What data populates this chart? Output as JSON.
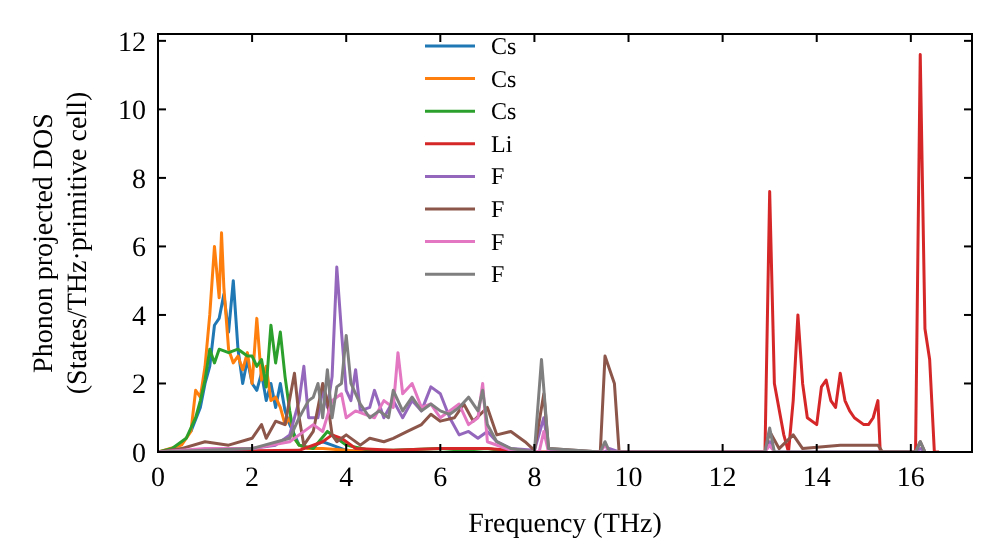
{
  "chart_data": {
    "type": "line",
    "xlabel": "Frequency (THz)",
    "ylabel": "Phonon projected DOS\n(States/THz·primitive cell)",
    "xlim": [
      0,
      17.3
    ],
    "ylim": [
      0,
      12.2
    ],
    "xticks": [
      0,
      2,
      4,
      6,
      8,
      10,
      12,
      14,
      16
    ],
    "yticks": [
      0,
      2,
      4,
      6,
      8,
      10,
      12
    ],
    "grid": false,
    "legend": "top",
    "marker": "none",
    "line_style": "solid",
    "series": [
      {
        "name": "Cs",
        "color": "#1f77b4",
        "x": [
          0.7,
          0.9,
          1.0,
          1.1,
          1.2,
          1.3,
          1.4,
          1.5,
          1.6,
          1.7,
          1.8,
          1.9,
          2.0,
          2.1,
          2.2,
          2.3,
          2.4,
          2.5,
          2.6,
          2.7,
          2.8,
          2.9,
          3.0,
          3.2,
          3.5,
          3.7,
          4.0,
          4.5
        ],
        "values": [
          0.6,
          1.3,
          2.0,
          2.5,
          3.7,
          3.9,
          4.6,
          3.5,
          5.0,
          3.0,
          2.0,
          2.7,
          2.0,
          1.8,
          2.3,
          1.5,
          2.0,
          1.3,
          2.0,
          1.2,
          0.8,
          0.5,
          0.2,
          0.1,
          0.3,
          0.2,
          0.05,
          0
        ]
      },
      {
        "name": "Cs",
        "color": "#ff7f0e",
        "x": [
          0,
          0.5,
          0.7,
          0.8,
          0.9,
          1.0,
          1.1,
          1.2,
          1.3,
          1.35,
          1.4,
          1.5,
          1.6,
          1.7,
          1.8,
          1.9,
          2.0,
          2.1,
          2.2,
          2.3,
          2.4,
          2.5,
          2.6,
          2.7,
          2.8,
          2.9,
          3.0,
          3.2,
          3.5,
          4.0,
          4.5
        ],
        "values": [
          0,
          0.2,
          0.6,
          1.8,
          1.6,
          2.5,
          4.0,
          6.0,
          4.5,
          6.4,
          4.8,
          3.0,
          2.6,
          2.8,
          2.4,
          2.9,
          2.0,
          3.9,
          2.1,
          2.5,
          1.5,
          1.6,
          1.3,
          0.8,
          1.0,
          0.4,
          0.2,
          0.1,
          0.1,
          0.05,
          0
        ]
      },
      {
        "name": "Cs",
        "color": "#2ca02c",
        "x": [
          0,
          0.3,
          0.6,
          0.8,
          0.9,
          1.0,
          1.1,
          1.2,
          1.3,
          1.5,
          1.7,
          1.9,
          2.0,
          2.1,
          2.2,
          2.3,
          2.4,
          2.5,
          2.6,
          2.7,
          2.8,
          2.9,
          3.0,
          3.3,
          3.6,
          3.8,
          4.0,
          4.5,
          5.0,
          6.0,
          6.5,
          7.0,
          7.5
        ],
        "values": [
          0,
          0.1,
          0.4,
          1.0,
          1.5,
          2.1,
          3.0,
          2.6,
          3.0,
          2.9,
          3.0,
          2.8,
          2.8,
          2.5,
          2.7,
          1.9,
          3.7,
          2.6,
          3.5,
          2.2,
          1.2,
          0.4,
          0.2,
          0.1,
          0.6,
          0.4,
          0.2,
          0.05,
          0.05,
          0.1,
          0.05,
          0.1,
          0
        ]
      },
      {
        "name": "Li",
        "color": "#d62728",
        "x": [
          0,
          3.0,
          3.5,
          3.7,
          3.9,
          4.2,
          5.0,
          6.0,
          7.0,
          7.5,
          8.0,
          12.9,
          13.0,
          13.1,
          13.3,
          13.4,
          13.5,
          13.6,
          13.7,
          13.8,
          14.0,
          14.1,
          14.2,
          14.3,
          14.4,
          14.5,
          14.6,
          14.7,
          14.8,
          15.0,
          15.1,
          15.2,
          15.3,
          15.35,
          16.1,
          16.2,
          16.3,
          16.4,
          16.5,
          16.6
        ],
        "values": [
          0,
          0.05,
          0.3,
          0.5,
          0.4,
          0.1,
          0.05,
          0.1,
          0.1,
          0.05,
          0,
          0,
          7.6,
          2.0,
          0.5,
          0,
          1.5,
          4.0,
          2.0,
          1.0,
          0.8,
          1.9,
          2.1,
          1.5,
          1.3,
          2.3,
          1.5,
          1.2,
          1.0,
          0.8,
          0.8,
          1.0,
          1.5,
          0,
          0,
          11.6,
          3.6,
          2.7,
          0,
          0
        ]
      },
      {
        "name": "F",
        "color": "#9467bd",
        "x": [
          0,
          1.0,
          2.0,
          2.5,
          2.8,
          3.0,
          3.1,
          3.2,
          3.4,
          3.5,
          3.6,
          3.7,
          3.8,
          3.9,
          4.0,
          4.1,
          4.2,
          4.3,
          4.5,
          4.6,
          4.8,
          5.0,
          5.2,
          5.4,
          5.6,
          5.8,
          6.0,
          6.2,
          6.4,
          6.6,
          6.8,
          7.0,
          7.2,
          7.5,
          8.0,
          8.2,
          8.3,
          9.5,
          9.6,
          9.8,
          12.9,
          13.0,
          13.1,
          16.1,
          16.2,
          16.3
        ],
        "values": [
          0,
          0.05,
          0.1,
          0.2,
          0.5,
          1.5,
          2.5,
          1.0,
          1.0,
          1.8,
          1.3,
          2.2,
          5.4,
          3.5,
          1.8,
          1.5,
          2.4,
          1.2,
          1.3,
          1.8,
          1.0,
          1.5,
          1.0,
          1.5,
          1.2,
          1.9,
          1.7,
          1.0,
          0.5,
          0.6,
          0.4,
          0.6,
          0.3,
          0.1,
          0.05,
          1.0,
          0.05,
          0,
          0.1,
          0,
          0,
          0.3,
          0,
          0,
          0.1,
          0
        ]
      },
      {
        "name": "F",
        "color": "#8c564b",
        "x": [
          0,
          0.5,
          1.0,
          1.5,
          2.0,
          2.2,
          2.3,
          2.5,
          2.7,
          2.9,
          3.0,
          3.1,
          3.3,
          3.5,
          3.6,
          3.7,
          3.8,
          4.0,
          4.3,
          4.5,
          4.8,
          5.0,
          5.3,
          5.6,
          5.8,
          6.0,
          6.3,
          6.5,
          6.7,
          7.0,
          7.2,
          7.5,
          7.8,
          8.0,
          8.2,
          8.3,
          9.4,
          9.5,
          9.7,
          9.8,
          12.9,
          13.0,
          13.2,
          13.5,
          13.7,
          14.5,
          15.3,
          15.4,
          16.1,
          16.2,
          16.3
        ],
        "values": [
          0,
          0.1,
          0.3,
          0.2,
          0.4,
          0.8,
          0.4,
          0.9,
          0.8,
          2.3,
          1.0,
          0.2,
          0.6,
          2.0,
          1.5,
          0.5,
          0.3,
          0.5,
          0.2,
          0.4,
          0.3,
          0.4,
          0.6,
          0.8,
          1.1,
          0.9,
          1.0,
          1.4,
          0.9,
          1.3,
          0.5,
          0.6,
          0.3,
          0.05,
          1.7,
          0.1,
          0,
          2.8,
          2.0,
          0,
          0,
          0.6,
          0.1,
          0.5,
          0.1,
          0.2,
          0.2,
          0,
          0,
          0.3,
          0
        ]
      },
      {
        "name": "F",
        "color": "#e377c2",
        "x": [
          0,
          1.0,
          2.0,
          2.8,
          3.0,
          3.3,
          3.5,
          3.7,
          3.9,
          4.0,
          4.2,
          4.4,
          4.6,
          4.8,
          5.0,
          5.1,
          5.2,
          5.4,
          5.6,
          5.8,
          6.0,
          6.2,
          6.4,
          6.6,
          6.8,
          6.9,
          7.0,
          7.5,
          8.1,
          8.2,
          8.3,
          9.4,
          9.5,
          9.6,
          12.9,
          13.0,
          13.1
        ],
        "values": [
          0,
          0.1,
          0.1,
          0.3,
          0.5,
          0.8,
          0.6,
          1.5,
          1.7,
          1.0,
          1.2,
          1.1,
          1.0,
          1.5,
          1.3,
          2.9,
          1.7,
          2.0,
          1.3,
          1.4,
          1.0,
          1.2,
          1.4,
          0.8,
          1.0,
          2.0,
          0.3,
          0.05,
          0,
          0.6,
          0,
          0,
          0.2,
          0,
          0,
          0.2,
          0
        ]
      },
      {
        "name": "F",
        "color": "#7f7f7f",
        "x": [
          0,
          1.0,
          2.0,
          2.8,
          3.0,
          3.2,
          3.3,
          3.4,
          3.5,
          3.6,
          3.7,
          3.8,
          3.9,
          4.0,
          4.1,
          4.3,
          4.5,
          4.7,
          4.9,
          5.0,
          5.2,
          5.4,
          5.6,
          5.8,
          6.0,
          6.2,
          6.4,
          6.6,
          6.8,
          6.9,
          7.0,
          7.2,
          7.5,
          8.0,
          8.15,
          8.3,
          9.4,
          9.5,
          9.6,
          12.9,
          13.0,
          13.1,
          16.1,
          16.2,
          16.3
        ],
        "values": [
          0,
          0.05,
          0.1,
          0.4,
          1.0,
          1.5,
          1.6,
          2.0,
          1.0,
          2.4,
          1.0,
          1.9,
          2.0,
          3.4,
          2.0,
          1.4,
          1.0,
          1.2,
          1.0,
          1.8,
          1.2,
          1.6,
          1.2,
          1.4,
          1.2,
          1.1,
          1.3,
          1.6,
          1.2,
          1.8,
          0.8,
          0.3,
          0.1,
          0,
          2.7,
          0.1,
          0,
          0.3,
          0,
          0,
          0.7,
          0,
          0,
          0.3,
          0
        ]
      }
    ]
  }
}
